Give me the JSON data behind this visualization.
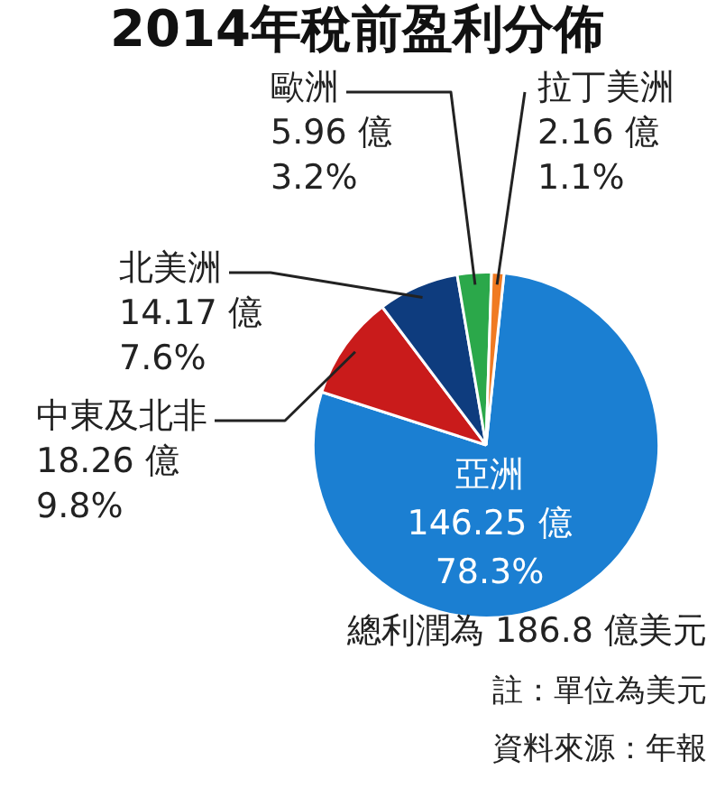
{
  "chart_data": {
    "type": "pie",
    "title": "2014年稅前盈利分佈",
    "categories": [
      "亞洲",
      "中東及北非",
      "北美洲",
      "歐洲",
      "拉丁美洲"
    ],
    "values": [
      146.25,
      18.26,
      14.17,
      5.96,
      2.16
    ],
    "colors": [
      "#1b7fd2",
      "#c91b1b",
      "#0e3c7e",
      "#2ba84a",
      "#f07a22"
    ],
    "value_labels": [
      "146.25 億\n78.3%",
      "18.26 億\n9.8%",
      "14.17 億\n7.6%",
      "5.96 億\n3.2%",
      "2.16 億\n1.1%"
    ],
    "legend": false,
    "annotations": [
      "總利潤為 186.8 億美元",
      "註：單位為美元",
      "資料來源：年報"
    ]
  }
}
